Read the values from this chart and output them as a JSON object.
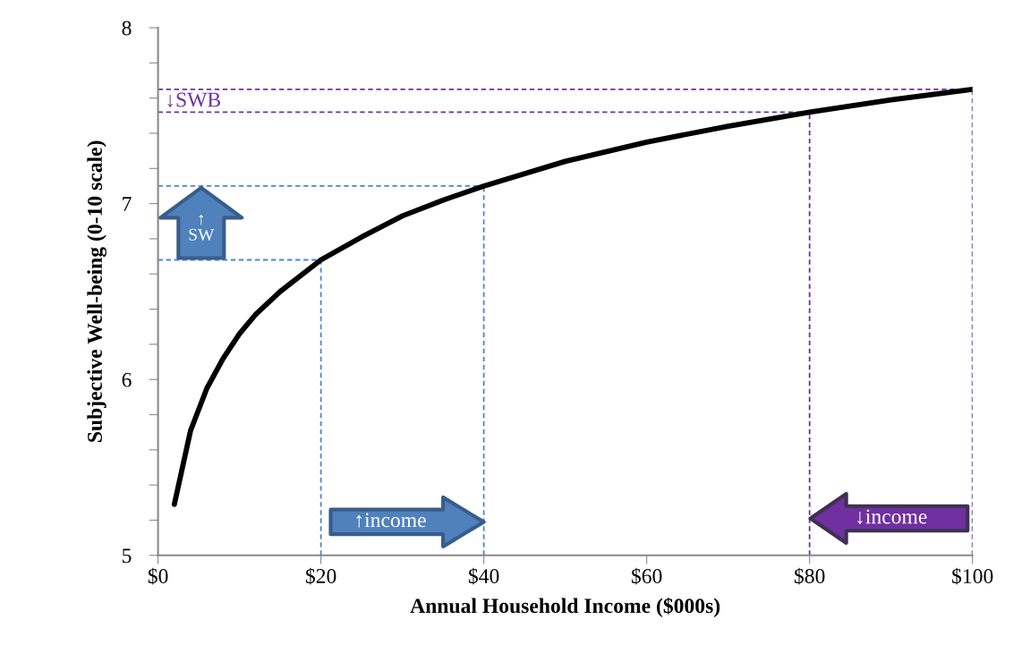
{
  "chart_data": {
    "type": "line",
    "xlabel": "Annual Household Income ($000s)",
    "ylabel": "Subjective Well-being (0-10 scale)",
    "x": [
      2,
      4,
      6,
      8,
      10,
      12,
      15,
      20,
      25,
      30,
      35,
      40,
      50,
      60,
      70,
      80,
      90,
      100
    ],
    "series": [
      {
        "color": "#000000",
        "values": [
          5.29,
          5.71,
          5.95,
          6.12,
          6.26,
          6.37,
          6.5,
          6.68,
          6.81,
          6.93,
          7.02,
          7.1,
          7.24,
          7.35,
          7.44,
          7.52,
          7.59,
          7.65
        ]
      }
    ],
    "xlim": [
      0,
      100
    ],
    "ylim": [
      5,
      8
    ],
    "xticks": [
      {
        "value": 0,
        "label": "$0"
      },
      {
        "value": 20,
        "label": "$20"
      },
      {
        "value": 40,
        "label": "$40"
      },
      {
        "value": 60,
        "label": "$60"
      },
      {
        "value": 80,
        "label": "$80"
      },
      {
        "value": 100,
        "label": "$100"
      }
    ],
    "yticks": [
      5,
      {
        "value": 5.2,
        "label": null
      },
      {
        "value": 5.4,
        "label": null
      },
      {
        "value": 5.6,
        "label": null
      },
      {
        "value": 5.8,
        "label": null
      },
      6,
      {
        "value": 6.2,
        "label": null
      },
      {
        "value": 6.4,
        "label": null
      },
      {
        "value": 6.6,
        "label": null
      },
      {
        "value": 6.8,
        "label": null
      },
      7,
      {
        "value": 7.2,
        "label": null
      },
      {
        "value": 7.4,
        "label": null
      },
      {
        "value": 7.6,
        "label": null
      },
      {
        "value": 7.8,
        "label": null
      },
      8
    ],
    "ref_lines": [
      {
        "axis": "y",
        "value": 7.65,
        "color": "#7030a0",
        "line_style": "dashed"
      },
      {
        "axis": "y",
        "value": 7.52,
        "color": "#7030a0",
        "line_style": "dashed"
      },
      {
        "axis": "x",
        "value": 80,
        "color": "#7030a0",
        "line_style": "dashed"
      },
      {
        "axis": "x",
        "value": 100,
        "color": "#7030a0",
        "line_style": "dashed"
      },
      {
        "axis": "y",
        "value": 7.1,
        "color": "#4a86d4",
        "line_style": "dashed"
      },
      {
        "axis": "y",
        "value": 6.68,
        "color": "#4a86d4",
        "line_style": "dashed"
      },
      {
        "axis": "x",
        "value": 20,
        "color": "#4a86d4",
        "line_style": "dashed"
      },
      {
        "axis": "x",
        "value": 40,
        "color": "#4a86d4",
        "line_style": "dashed"
      }
    ],
    "annotations": [
      "↑\nSW",
      "↓SWB",
      {
        "text": "↑income",
        "x": 40,
        "y": 5.19
      },
      "↓income"
    ],
    "grid": false,
    "legend": false,
    "marker": "none",
    "line_style": "solid"
  }
}
